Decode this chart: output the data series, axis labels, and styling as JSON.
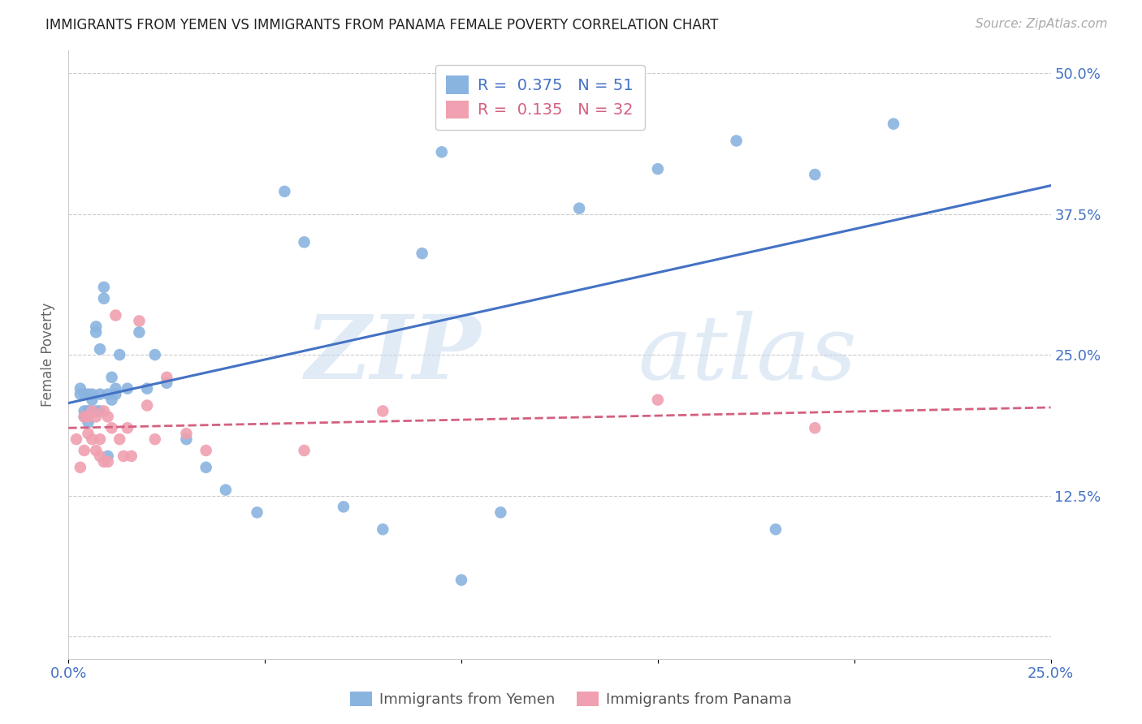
{
  "title": "IMMIGRANTS FROM YEMEN VS IMMIGRANTS FROM PANAMA FEMALE POVERTY CORRELATION CHART",
  "source": "Source: ZipAtlas.com",
  "ylabel": "Female Poverty",
  "xlim": [
    0.0,
    0.25
  ],
  "ylim": [
    -0.02,
    0.52
  ],
  "xticks": [
    0.0,
    0.05,
    0.1,
    0.15,
    0.2,
    0.25
  ],
  "xtick_labels": [
    "0.0%",
    "",
    "",
    "",
    "",
    "25.0%"
  ],
  "yticks": [
    0.0,
    0.125,
    0.25,
    0.375,
    0.5
  ],
  "ytick_right_labels": [
    "",
    "12.5%",
    "25.0%",
    "37.5%",
    "50.0%"
  ],
  "legend1_R": "0.375",
  "legend1_N": "51",
  "legend2_R": "0.135",
  "legend2_N": "32",
  "color_yemen": "#8ab4e0",
  "color_panama": "#f0a0b0",
  "regression_color_yemen": "#4472c4",
  "regression_color_panama": "#d46080",
  "watermark_zip": "ZIP",
  "watermark_atlas": "atlas",
  "legend_label1": "Immigrants from Yemen",
  "legend_label2": "Immigrants from Panama",
  "yemen_x": [
    0.003,
    0.003,
    0.004,
    0.004,
    0.004,
    0.005,
    0.005,
    0.005,
    0.005,
    0.006,
    0.006,
    0.006,
    0.007,
    0.007,
    0.007,
    0.008,
    0.008,
    0.008,
    0.009,
    0.009,
    0.01,
    0.01,
    0.011,
    0.011,
    0.012,
    0.012,
    0.013,
    0.015,
    0.018,
    0.02,
    0.022,
    0.025,
    0.03,
    0.035,
    0.04,
    0.048,
    0.055,
    0.06,
    0.07,
    0.08,
    0.09,
    0.095,
    0.1,
    0.11,
    0.12,
    0.13,
    0.15,
    0.17,
    0.18,
    0.19,
    0.21
  ],
  "yemen_y": [
    0.215,
    0.22,
    0.215,
    0.2,
    0.195,
    0.215,
    0.2,
    0.2,
    0.19,
    0.21,
    0.2,
    0.215,
    0.27,
    0.275,
    0.2,
    0.215,
    0.2,
    0.255,
    0.31,
    0.3,
    0.215,
    0.16,
    0.21,
    0.23,
    0.22,
    0.215,
    0.25,
    0.22,
    0.27,
    0.22,
    0.25,
    0.225,
    0.175,
    0.15,
    0.13,
    0.11,
    0.395,
    0.35,
    0.115,
    0.095,
    0.34,
    0.43,
    0.05,
    0.11,
    0.48,
    0.38,
    0.415,
    0.44,
    0.095,
    0.41,
    0.455
  ],
  "panama_x": [
    0.002,
    0.003,
    0.004,
    0.004,
    0.005,
    0.005,
    0.006,
    0.006,
    0.007,
    0.007,
    0.008,
    0.008,
    0.009,
    0.009,
    0.01,
    0.01,
    0.011,
    0.012,
    0.013,
    0.014,
    0.015,
    0.016,
    0.018,
    0.02,
    0.022,
    0.025,
    0.03,
    0.035,
    0.06,
    0.08,
    0.15,
    0.19
  ],
  "panama_y": [
    0.175,
    0.15,
    0.195,
    0.165,
    0.18,
    0.195,
    0.2,
    0.175,
    0.195,
    0.165,
    0.175,
    0.16,
    0.2,
    0.155,
    0.195,
    0.155,
    0.185,
    0.285,
    0.175,
    0.16,
    0.185,
    0.16,
    0.28,
    0.205,
    0.175,
    0.23,
    0.18,
    0.165,
    0.165,
    0.2,
    0.21,
    0.185
  ]
}
